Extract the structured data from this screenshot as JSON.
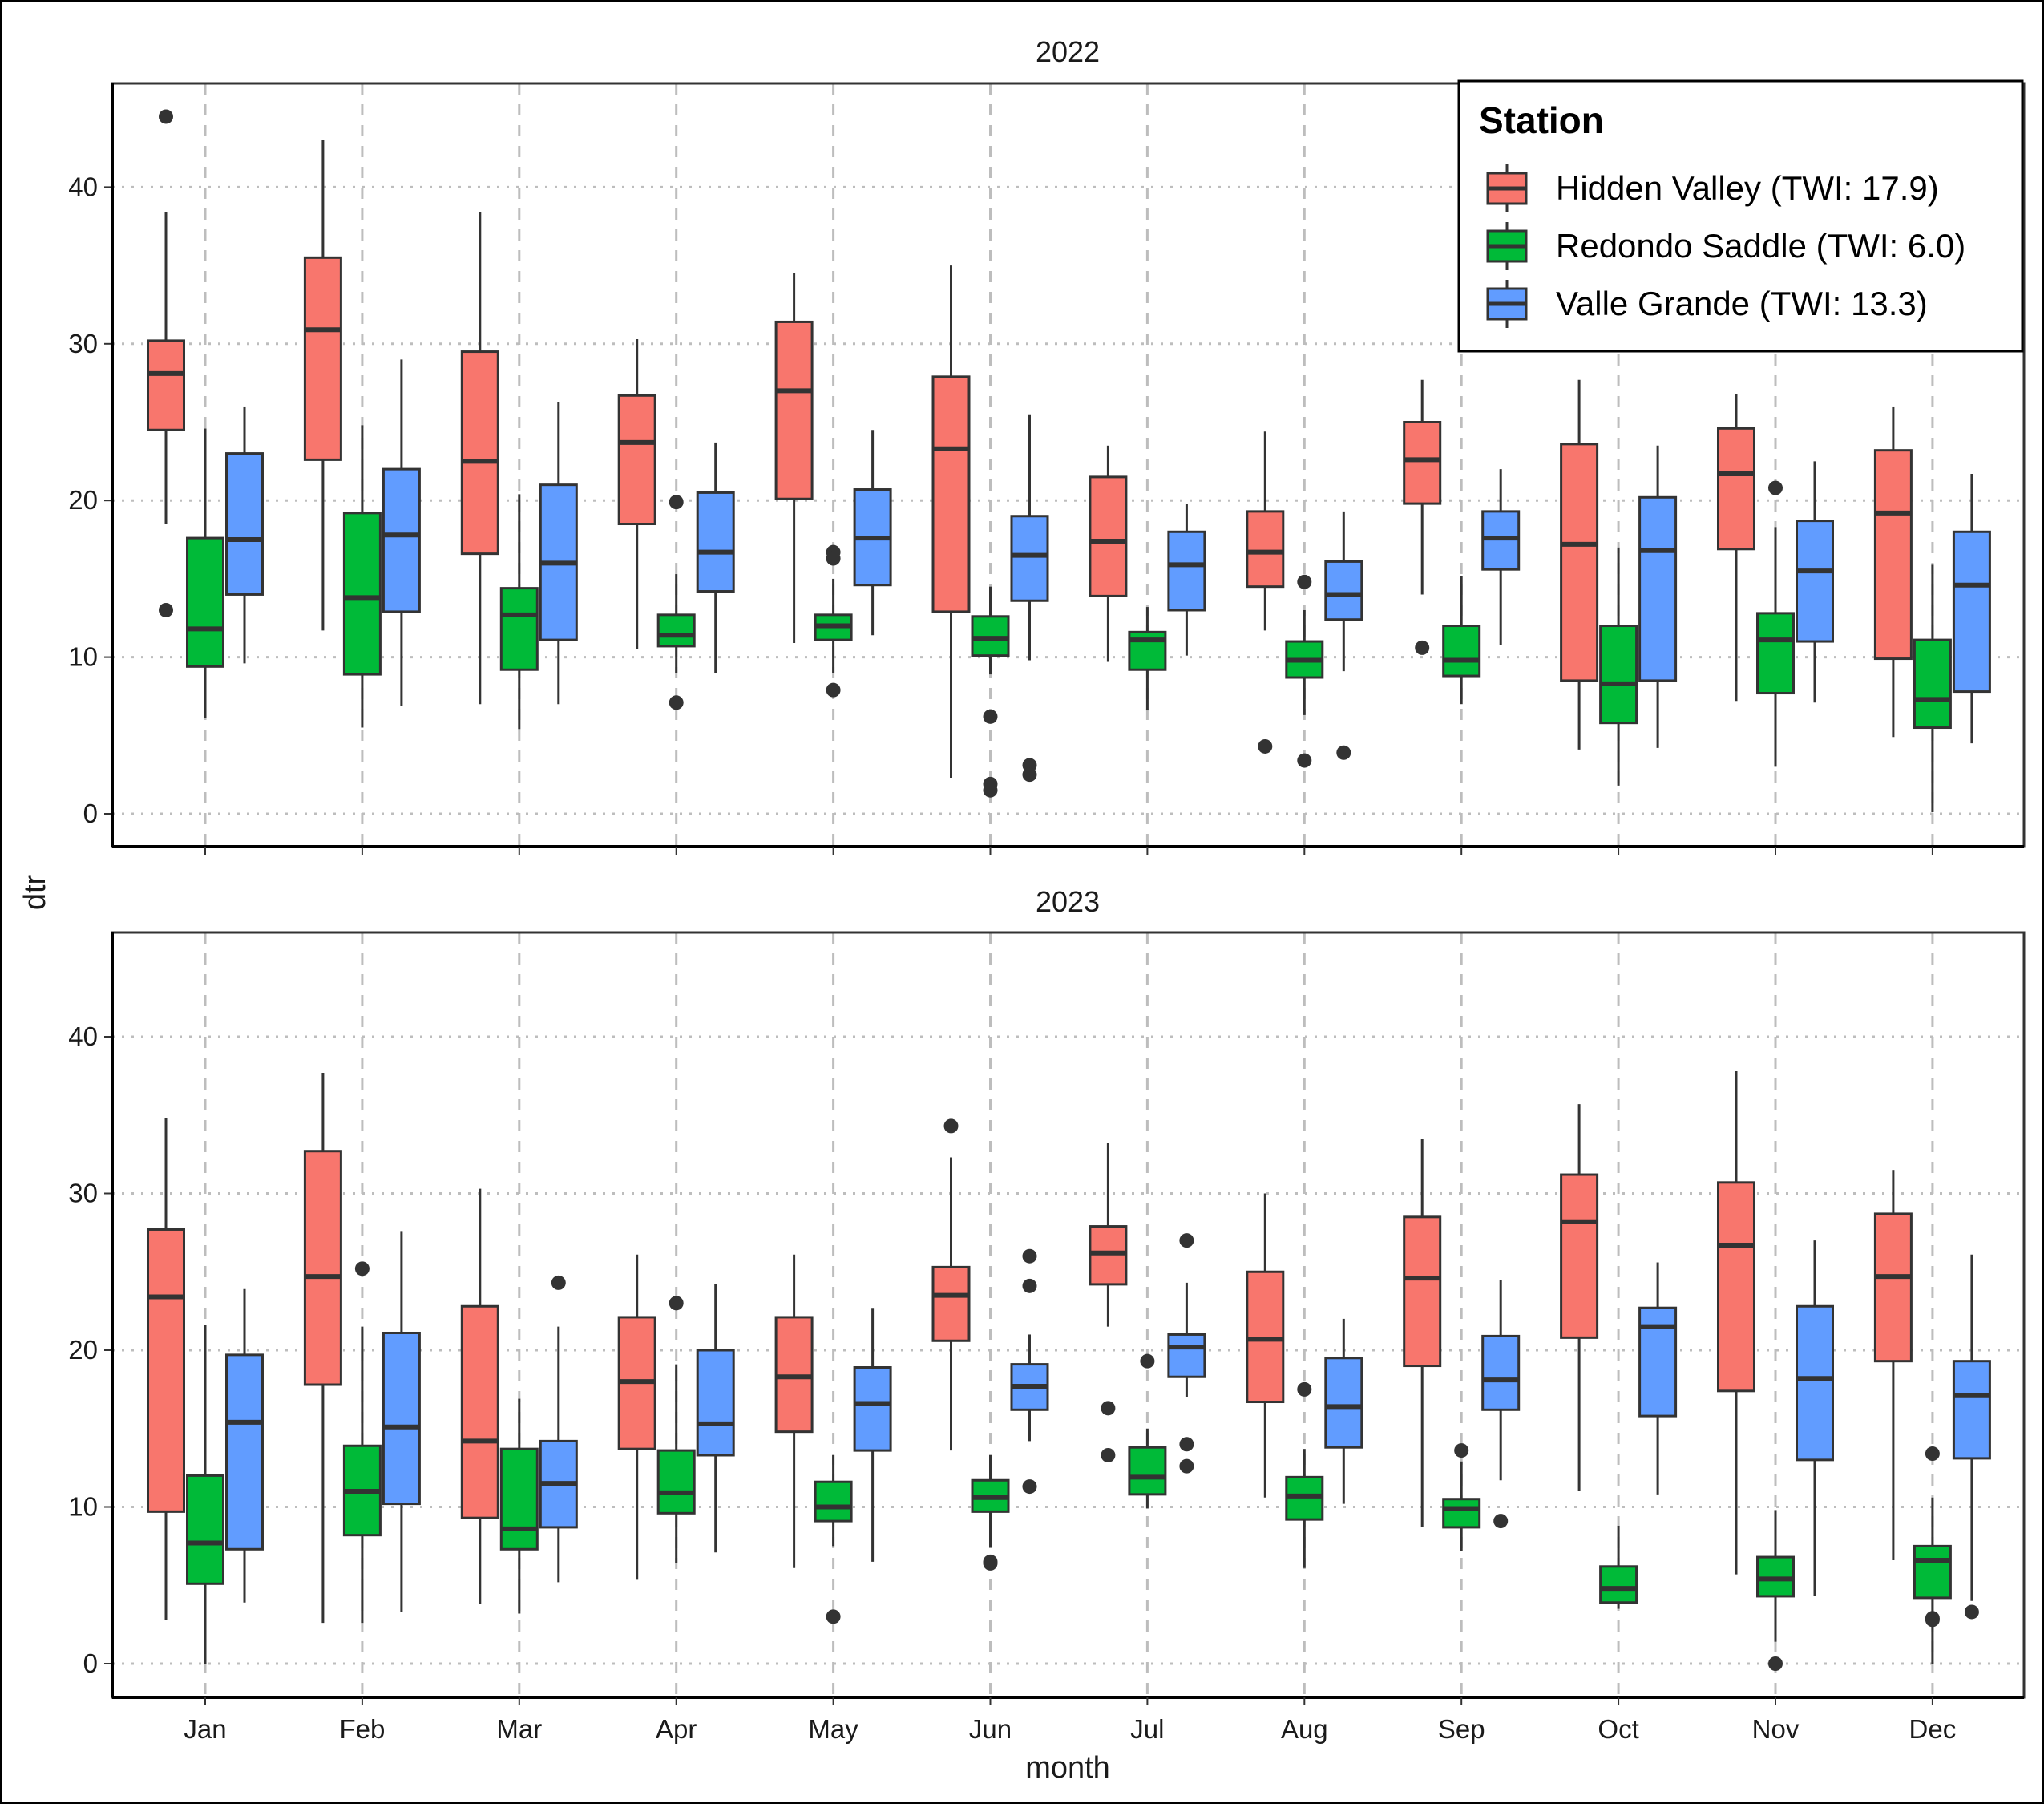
{
  "chart_data": {
    "type": "box",
    "facets": [
      "2022",
      "2023"
    ],
    "xlabel": "month",
    "ylabel": "dtr",
    "categories": [
      "Jan",
      "Feb",
      "Mar",
      "Apr",
      "May",
      "Jun",
      "Jul",
      "Aug",
      "Sep",
      "Oct",
      "Nov",
      "Dec"
    ],
    "y_ticks": [
      0,
      10,
      20,
      30,
      40
    ],
    "ylim": [
      -2,
      46.5
    ],
    "grid": true,
    "legend": {
      "title": "Station",
      "position": "top-right",
      "entries": [
        {
          "label": "Hidden Valley (TWI: 17.9)",
          "color": "#F8766D"
        },
        {
          "label": "Redondo Saddle (TWI: 6.0)",
          "color": "#00BA38"
        },
        {
          "label": "Valle Grande (TWI: 13.3)",
          "color": "#619CFF"
        }
      ]
    },
    "series_2022": [
      {
        "name": "Hidden Valley (TWI: 17.9)",
        "color": "#F8766D",
        "boxes": [
          {
            "min": 18.5,
            "q1": 24.5,
            "median": 28.1,
            "q3": 30.2,
            "max": 38.4,
            "outliers": [
              44.5,
              13.0
            ]
          },
          {
            "min": 11.7,
            "q1": 22.6,
            "median": 30.9,
            "q3": 35.5,
            "max": 43.0,
            "outliers": []
          },
          {
            "min": 7.0,
            "q1": 16.6,
            "median": 22.5,
            "q3": 29.5,
            "max": 38.4,
            "outliers": []
          },
          {
            "min": 10.5,
            "q1": 18.5,
            "median": 23.7,
            "q3": 26.7,
            "max": 30.3,
            "outliers": []
          },
          {
            "min": 10.9,
            "q1": 20.1,
            "median": 27.0,
            "q3": 31.4,
            "max": 34.5,
            "outliers": []
          },
          {
            "min": 2.3,
            "q1": 12.9,
            "median": 23.3,
            "q3": 27.9,
            "max": 35.0,
            "outliers": []
          },
          {
            "min": 9.7,
            "q1": 13.9,
            "median": 17.4,
            "q3": 21.5,
            "max": 23.5,
            "outliers": []
          },
          {
            "min": 11.7,
            "q1": 14.5,
            "median": 16.7,
            "q3": 19.3,
            "max": 24.4,
            "outliers": [
              4.3
            ]
          },
          {
            "min": 14.0,
            "q1": 19.8,
            "median": 22.6,
            "q3": 25.0,
            "max": 27.7,
            "outliers": [
              10.6
            ]
          },
          {
            "min": 4.1,
            "q1": 8.5,
            "median": 17.2,
            "q3": 23.6,
            "max": 27.7,
            "outliers": []
          },
          {
            "min": 7.2,
            "q1": 16.9,
            "median": 21.7,
            "q3": 24.6,
            "max": 26.8,
            "outliers": []
          },
          {
            "min": 4.9,
            "q1": 9.9,
            "median": 19.2,
            "q3": 23.2,
            "max": 26.0,
            "outliers": []
          }
        ]
      },
      {
        "name": "Redondo Saddle (TWI: 6.0)",
        "color": "#00BA38",
        "boxes": [
          {
            "min": 6.1,
            "q1": 9.4,
            "median": 11.8,
            "q3": 17.6,
            "max": 24.6,
            "outliers": []
          },
          {
            "min": 5.5,
            "q1": 8.9,
            "median": 13.8,
            "q3": 19.2,
            "max": 24.8,
            "outliers": []
          },
          {
            "min": 5.4,
            "q1": 9.2,
            "median": 12.7,
            "q3": 14.4,
            "max": 20.4,
            "outliers": []
          },
          {
            "min": 9.0,
            "q1": 10.7,
            "median": 11.4,
            "q3": 12.7,
            "max": 15.3,
            "outliers": [
              19.9,
              7.1
            ]
          },
          {
            "min": 9.0,
            "q1": 11.1,
            "median": 12.0,
            "q3": 12.7,
            "max": 15.0,
            "outliers": [
              16.7,
              16.3,
              7.9
            ]
          },
          {
            "min": 8.9,
            "q1": 10.1,
            "median": 11.2,
            "q3": 12.6,
            "max": 14.5,
            "outliers": [
              6.2,
              1.9,
              1.5
            ]
          },
          {
            "min": 6.6,
            "q1": 9.2,
            "median": 11.1,
            "q3": 11.6,
            "max": 13.2,
            "outliers": []
          },
          {
            "min": 6.3,
            "q1": 8.7,
            "median": 9.8,
            "q3": 11.0,
            "max": 13.0,
            "outliers": [
              14.8,
              3.4
            ]
          },
          {
            "min": 7.0,
            "q1": 8.8,
            "median": 9.8,
            "q3": 12.0,
            "max": 15.2,
            "outliers": []
          },
          {
            "min": 1.8,
            "q1": 5.8,
            "median": 8.3,
            "q3": 12.0,
            "max": 17.0,
            "outliers": []
          },
          {
            "min": 3.0,
            "q1": 7.7,
            "median": 11.1,
            "q3": 12.8,
            "max": 18.3,
            "outliers": [
              20.8
            ]
          },
          {
            "min": 0.1,
            "q1": 5.5,
            "median": 7.3,
            "q3": 11.1,
            "max": 15.9,
            "outliers": []
          }
        ]
      },
      {
        "name": "Valle Grande (TWI: 13.3)",
        "color": "#619CFF",
        "boxes": [
          {
            "min": 9.6,
            "q1": 14.0,
            "median": 17.5,
            "q3": 23.0,
            "max": 26.0,
            "outliers": []
          },
          {
            "min": 6.9,
            "q1": 12.9,
            "median": 17.8,
            "q3": 22.0,
            "max": 29.0,
            "outliers": []
          },
          {
            "min": 7.0,
            "q1": 11.1,
            "median": 16.0,
            "q3": 21.0,
            "max": 26.3,
            "outliers": []
          },
          {
            "min": 9.0,
            "q1": 14.2,
            "median": 16.7,
            "q3": 20.5,
            "max": 23.7,
            "outliers": []
          },
          {
            "min": 11.4,
            "q1": 14.6,
            "median": 17.6,
            "q3": 20.7,
            "max": 24.5,
            "outliers": []
          },
          {
            "min": 9.8,
            "q1": 13.6,
            "median": 16.5,
            "q3": 19.0,
            "max": 25.5,
            "outliers": [
              3.1,
              2.5
            ]
          },
          {
            "min": 10.1,
            "q1": 13.0,
            "median": 15.9,
            "q3": 18.0,
            "max": 19.8,
            "outliers": []
          },
          {
            "min": 9.1,
            "q1": 12.4,
            "median": 14.0,
            "q3": 16.1,
            "max": 19.3,
            "outliers": [
              3.9
            ]
          },
          {
            "min": 10.8,
            "q1": 15.6,
            "median": 17.6,
            "q3": 19.3,
            "max": 22.0,
            "outliers": []
          },
          {
            "min": 4.2,
            "q1": 8.5,
            "median": 16.8,
            "q3": 20.2,
            "max": 23.5,
            "outliers": []
          },
          {
            "min": 7.1,
            "q1": 11.0,
            "median": 15.5,
            "q3": 18.7,
            "max": 22.5,
            "outliers": []
          },
          {
            "min": 4.5,
            "q1": 7.8,
            "median": 14.6,
            "q3": 18.0,
            "max": 21.7,
            "outliers": []
          }
        ]
      }
    ],
    "series_2023": [
      {
        "name": "Hidden Valley (TWI: 17.9)",
        "color": "#F8766D",
        "boxes": [
          {
            "min": 2.8,
            "q1": 9.7,
            "median": 23.4,
            "q3": 27.7,
            "max": 34.8,
            "outliers": []
          },
          {
            "min": 2.6,
            "q1": 17.8,
            "median": 24.7,
            "q3": 32.7,
            "max": 37.7,
            "outliers": []
          },
          {
            "min": 3.8,
            "q1": 9.3,
            "median": 14.2,
            "q3": 22.8,
            "max": 30.3,
            "outliers": []
          },
          {
            "min": 5.4,
            "q1": 13.7,
            "median": 18.0,
            "q3": 22.1,
            "max": 26.1,
            "outliers": []
          },
          {
            "min": 6.1,
            "q1": 14.8,
            "median": 18.3,
            "q3": 22.1,
            "max": 26.1,
            "outliers": []
          },
          {
            "min": 13.6,
            "q1": 20.6,
            "median": 23.5,
            "q3": 25.3,
            "max": 32.3,
            "outliers": [
              34.3
            ]
          },
          {
            "min": 21.5,
            "q1": 24.2,
            "median": 26.2,
            "q3": 27.9,
            "max": 33.2,
            "outliers": [
              16.3,
              13.3
            ]
          },
          {
            "min": 10.6,
            "q1": 16.7,
            "median": 20.7,
            "q3": 25.0,
            "max": 30.0,
            "outliers": []
          },
          {
            "min": 8.7,
            "q1": 19.0,
            "median": 24.6,
            "q3": 28.5,
            "max": 33.5,
            "outliers": []
          },
          {
            "min": 11.0,
            "q1": 20.8,
            "median": 28.2,
            "q3": 31.2,
            "max": 35.7,
            "outliers": []
          },
          {
            "min": 5.7,
            "q1": 17.4,
            "median": 26.7,
            "q3": 30.7,
            "max": 37.8,
            "outliers": []
          },
          {
            "min": 6.6,
            "q1": 19.3,
            "median": 24.7,
            "q3": 28.7,
            "max": 31.5,
            "outliers": []
          }
        ]
      },
      {
        "name": "Redondo Saddle (TWI: 6.0)",
        "color": "#00BA38",
        "boxes": [
          {
            "min": 0.0,
            "q1": 5.1,
            "median": 7.7,
            "q3": 12.0,
            "max": 21.6,
            "outliers": []
          },
          {
            "min": 2.6,
            "q1": 8.2,
            "median": 11.0,
            "q3": 13.9,
            "max": 21.5,
            "outliers": [
              25.2
            ]
          },
          {
            "min": 3.2,
            "q1": 7.3,
            "median": 8.6,
            "q3": 13.7,
            "max": 16.9,
            "outliers": []
          },
          {
            "min": 6.4,
            "q1": 9.6,
            "median": 10.9,
            "q3": 13.6,
            "max": 19.1,
            "outliers": [
              23.0
            ]
          },
          {
            "min": 7.5,
            "q1": 9.1,
            "median": 10.0,
            "q3": 11.6,
            "max": 13.3,
            "outliers": [
              3.0
            ]
          },
          {
            "min": 7.4,
            "q1": 9.7,
            "median": 10.6,
            "q3": 11.7,
            "max": 13.3,
            "outliers": [
              6.5,
              6.4
            ]
          },
          {
            "min": 9.9,
            "q1": 10.8,
            "median": 11.9,
            "q3": 13.8,
            "max": 15.0,
            "outliers": [
              19.3
            ]
          },
          {
            "min": 6.1,
            "q1": 9.2,
            "median": 10.7,
            "q3": 11.9,
            "max": 13.7,
            "outliers": [
              17.5
            ]
          },
          {
            "min": 7.2,
            "q1": 8.7,
            "median": 9.9,
            "q3": 10.5,
            "max": 12.9,
            "outliers": [
              13.6
            ]
          },
          {
            "min": 3.5,
            "q1": 3.9,
            "median": 4.8,
            "q3": 6.2,
            "max": 8.8,
            "outliers": []
          },
          {
            "min": 1.4,
            "q1": 4.3,
            "median": 5.4,
            "q3": 6.8,
            "max": 9.8,
            "outliers": [
              0.0
            ]
          },
          {
            "min": 0.0,
            "q1": 4.2,
            "median": 6.6,
            "q3": 7.5,
            "max": 10.6,
            "outliers": [
              13.4,
              2.9,
              2.8
            ]
          }
        ]
      },
      {
        "name": "Valle Grande (TWI: 13.3)",
        "color": "#619CFF",
        "boxes": [
          {
            "min": 3.9,
            "q1": 7.3,
            "median": 15.4,
            "q3": 19.7,
            "max": 23.9,
            "outliers": []
          },
          {
            "min": 3.3,
            "q1": 10.2,
            "median": 15.1,
            "q3": 21.1,
            "max": 27.6,
            "outliers": []
          },
          {
            "min": 5.2,
            "q1": 8.7,
            "median": 11.5,
            "q3": 14.2,
            "max": 21.5,
            "outliers": [
              24.3
            ]
          },
          {
            "min": 7.1,
            "q1": 13.3,
            "median": 15.3,
            "q3": 20.0,
            "max": 24.2,
            "outliers": []
          },
          {
            "min": 6.5,
            "q1": 13.6,
            "median": 16.6,
            "q3": 18.9,
            "max": 22.7,
            "outliers": []
          },
          {
            "min": 14.2,
            "q1": 16.2,
            "median": 17.7,
            "q3": 19.1,
            "max": 21.0,
            "outliers": [
              26.0,
              24.1,
              11.3
            ]
          },
          {
            "min": 17.0,
            "q1": 18.3,
            "median": 20.2,
            "q3": 21.0,
            "max": 24.3,
            "outliers": [
              27.0,
              14.0,
              12.6
            ]
          },
          {
            "min": 10.2,
            "q1": 13.8,
            "median": 16.4,
            "q3": 19.5,
            "max": 22.0,
            "outliers": []
          },
          {
            "min": 11.7,
            "q1": 16.2,
            "median": 18.1,
            "q3": 20.9,
            "max": 24.5,
            "outliers": [
              9.1
            ]
          },
          {
            "min": 10.8,
            "q1": 15.8,
            "median": 21.5,
            "q3": 22.7,
            "max": 25.6,
            "outliers": []
          },
          {
            "min": 4.3,
            "q1": 13.0,
            "median": 18.2,
            "q3": 22.8,
            "max": 27.0,
            "outliers": []
          },
          {
            "min": 4.0,
            "q1": 13.1,
            "median": 17.1,
            "q3": 19.3,
            "max": 26.1,
            "outliers": [
              3.3
            ]
          }
        ]
      }
    ]
  }
}
